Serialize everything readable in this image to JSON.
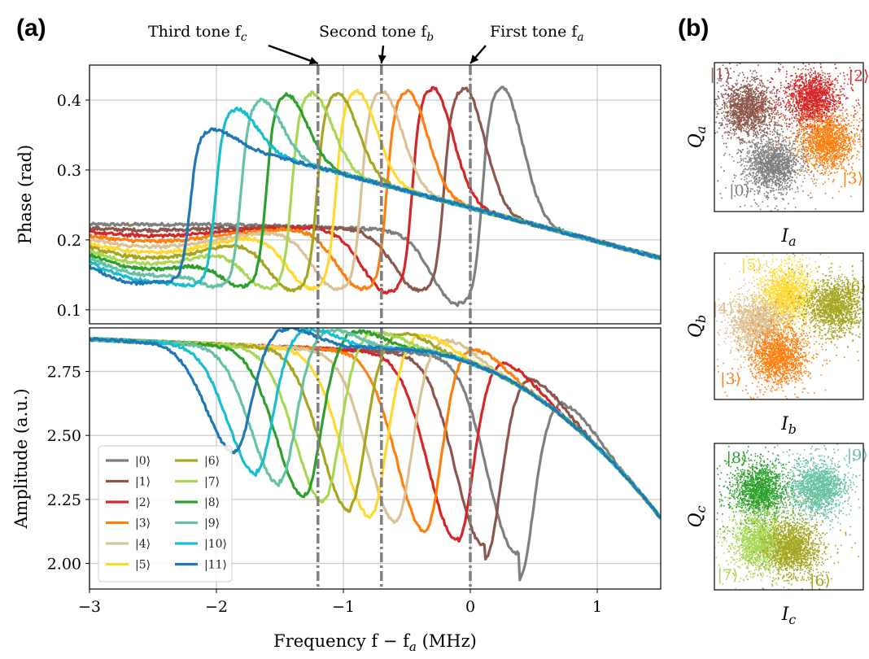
{
  "figure": {
    "panel_a_label": "(a)",
    "panel_b_label": "(b)",
    "annotations": [
      {
        "text": "Third tone f",
        "sub": "c",
        "x_freq": -1.2
      },
      {
        "text": "Second tone f",
        "sub": "b",
        "x_freq": -0.7
      },
      {
        "text": "First tone f",
        "sub": "a",
        "x_freq": 0.0
      }
    ]
  },
  "colors": {
    "s0": "#7f7f7f",
    "s1": "#8c564b",
    "s2": "#d62728",
    "s3": "#ff7f0e",
    "s4": "#dbc193",
    "s5": "#ffd92f",
    "s6": "#a5a520",
    "s7": "#a6d854",
    "s8": "#2ca02c",
    "s9": "#66c2a5",
    "s10": "#17becf",
    "s11": "#1f77b4",
    "grid": "#cccccc",
    "marker_line": "#7f7f7f"
  },
  "chart_data": [
    {
      "type": "line",
      "title": "",
      "xlabel": "",
      "ylabel": "Phase (rad)",
      "xlim": [
        -3,
        1.5
      ],
      "ylim": [
        0.08,
        0.45
      ],
      "yticks": [
        "0.1",
        "0.2",
        "0.3",
        "0.4"
      ],
      "ytick_values": [
        0.1,
        0.2,
        0.3,
        0.4
      ],
      "grid": true,
      "vertical_markers": [
        -1.2,
        -0.7,
        0.0
      ],
      "series": [
        {
          "name": "|0⟩",
          "color_key": "s0",
          "dip_center": 0.25,
          "dip_min": 0.108,
          "peak": 0.418
        },
        {
          "name": "|1⟩",
          "color_key": "s1",
          "dip_center": -0.05,
          "dip_min": 0.128,
          "peak": 0.418
        },
        {
          "name": "|2⟩",
          "color_key": "s2",
          "dip_center": -0.3,
          "dip_min": 0.125,
          "peak": 0.418
        },
        {
          "name": "|3⟩",
          "color_key": "s3",
          "dip_center": -0.5,
          "dip_min": 0.13,
          "peak": 0.413
        },
        {
          "name": "|4⟩",
          "color_key": "s4",
          "dip_center": -0.7,
          "dip_min": 0.13,
          "peak": 0.413
        },
        {
          "name": "|5⟩",
          "color_key": "s5",
          "dip_center": -0.9,
          "dip_min": 0.13,
          "peak": 0.413
        },
        {
          "name": "|6⟩",
          "color_key": "s6",
          "dip_center": -1.05,
          "dip_min": 0.128,
          "peak": 0.41
        },
        {
          "name": "|7⟩",
          "color_key": "s7",
          "dip_center": -1.25,
          "dip_min": 0.13,
          "peak": 0.41
        },
        {
          "name": "|8⟩",
          "color_key": "s8",
          "dip_center": -1.45,
          "dip_min": 0.133,
          "peak": 0.408
        },
        {
          "name": "|9⟩",
          "color_key": "s9",
          "dip_center": -1.65,
          "dip_min": 0.133,
          "peak": 0.4
        },
        {
          "name": "|10⟩",
          "color_key": "s10",
          "dip_center": -1.85,
          "dip_min": 0.135,
          "peak": 0.388
        },
        {
          "name": "|11⟩",
          "color_key": "s11",
          "dip_center": -2.05,
          "dip_min": 0.14,
          "peak": 0.358
        }
      ]
    },
    {
      "type": "line",
      "title": "",
      "xlabel": "Frequency f − f",
      "xlabel_sub": "a",
      "xlabel_unit": " (MHz)",
      "ylabel": "Amplitude (a.u.)",
      "xlim": [
        -3,
        1.5
      ],
      "ylim": [
        1.9,
        2.92
      ],
      "xticks": [
        "−3",
        "−2",
        "−1",
        "0",
        "1"
      ],
      "xtick_values": [
        -3,
        -2,
        -1,
        0,
        1
      ],
      "yticks": [
        "2.00",
        "2.25",
        "2.50",
        "2.75"
      ],
      "ytick_values": [
        2.0,
        2.25,
        2.5,
        2.75
      ],
      "grid": true,
      "legend_position": "lower-left",
      "vertical_markers": [
        -1.2,
        -0.7,
        0.0
      ],
      "series": [
        {
          "name": "|0⟩",
          "color_key": "s0",
          "dip_center": 0.38,
          "dip_min": 1.93
        },
        {
          "name": "|1⟩",
          "color_key": "s1",
          "dip_center": 0.12,
          "dip_min": 2.02
        },
        {
          "name": "|2⟩",
          "color_key": "s2",
          "dip_center": -0.1,
          "dip_min": 2.08
        },
        {
          "name": "|3⟩",
          "color_key": "s3",
          "dip_center": -0.35,
          "dip_min": 2.13
        },
        {
          "name": "|4⟩",
          "color_key": "s4",
          "dip_center": -0.58,
          "dip_min": 2.17
        },
        {
          "name": "|5⟩",
          "color_key": "s5",
          "dip_center": -0.78,
          "dip_min": 2.19
        },
        {
          "name": "|6⟩",
          "color_key": "s6",
          "dip_center": -0.95,
          "dip_min": 2.22
        },
        {
          "name": "|7⟩",
          "color_key": "s7",
          "dip_center": -1.15,
          "dip_min": 2.25
        },
        {
          "name": "|8⟩",
          "color_key": "s8",
          "dip_center": -1.3,
          "dip_min": 2.27
        },
        {
          "name": "|9⟩",
          "color_key": "s9",
          "dip_center": -1.5,
          "dip_min": 2.32
        },
        {
          "name": "|10⟩",
          "color_key": "s10",
          "dip_center": -1.68,
          "dip_min": 2.36
        },
        {
          "name": "|11⟩",
          "color_key": "s11",
          "dip_center": -1.85,
          "dip_min": 2.44
        }
      ]
    },
    {
      "type": "scatter",
      "title": "",
      "xlabel": "I",
      "xlabel_sub": "a",
      "ylabel": "Q",
      "ylabel_sub": "a",
      "grid": false,
      "clusters": [
        {
          "label": "|1⟩",
          "color_key": "s1",
          "cx": 0.22,
          "cy": 0.3
        },
        {
          "label": "|2⟩",
          "color_key": "s2",
          "cx": 0.66,
          "cy": 0.24
        },
        {
          "label": "|3⟩",
          "color_key": "s3",
          "cx": 0.75,
          "cy": 0.53
        },
        {
          "label": "|0⟩",
          "color_key": "s0",
          "cx": 0.39,
          "cy": 0.68
        }
      ]
    },
    {
      "type": "scatter",
      "title": "",
      "xlabel": "I",
      "xlabel_sub": "b",
      "ylabel": "Q",
      "ylabel_sub": "b",
      "grid": false,
      "clusters": [
        {
          "label": "|5⟩",
          "color_key": "s5",
          "cx": 0.48,
          "cy": 0.28
        },
        {
          "label": "|6⟩",
          "color_key": "s6",
          "cx": 0.8,
          "cy": 0.36
        },
        {
          "label": "|4⟩",
          "color_key": "s4",
          "cx": 0.28,
          "cy": 0.48
        },
        {
          "label": "|3⟩",
          "color_key": "s3",
          "cx": 0.43,
          "cy": 0.7
        }
      ]
    },
    {
      "type": "scatter",
      "title": "",
      "xlabel": "I",
      "xlabel_sub": "c",
      "ylabel": "Q",
      "ylabel_sub": "c",
      "grid": false,
      "clusters": [
        {
          "label": "|8⟩",
          "color_key": "s8",
          "cx": 0.3,
          "cy": 0.32
        },
        {
          "label": "|9⟩",
          "color_key": "s9",
          "cx": 0.69,
          "cy": 0.3
        },
        {
          "label": "|7⟩",
          "color_key": "s7",
          "cx": 0.3,
          "cy": 0.67
        },
        {
          "label": "|6⟩",
          "color_key": "s6",
          "cx": 0.52,
          "cy": 0.71
        }
      ]
    }
  ]
}
